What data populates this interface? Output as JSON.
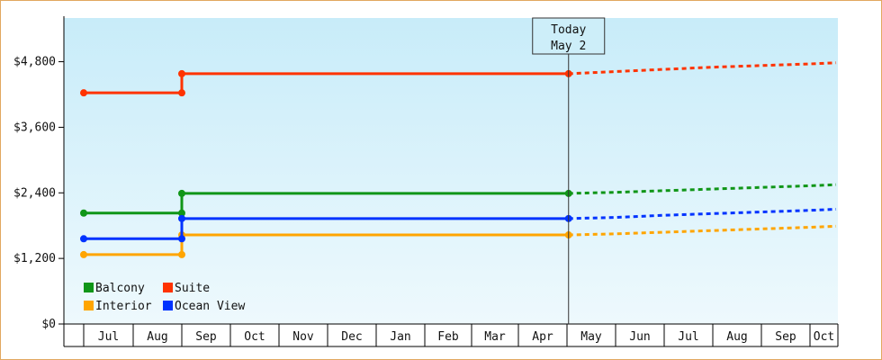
{
  "chart_data": {
    "type": "line",
    "y_ticks": [
      "$0",
      "$1,200",
      "$2,400",
      "$3,600",
      "$4,800"
    ],
    "y_tick_values": [
      0,
      1200,
      2400,
      3600,
      4800
    ],
    "ylim": [
      0,
      5600
    ],
    "x_months": [
      "Jul",
      "Aug",
      "Sep",
      "Oct",
      "Nov",
      "Dec",
      "Jan",
      "Feb",
      "Mar",
      "Apr",
      "May",
      "Jun",
      "Jul",
      "Aug",
      "Sep",
      "Oct"
    ],
    "today_label": "Today",
    "today_date": "May 2",
    "legend_placement": "bottom-left",
    "grid": false,
    "series": [
      {
        "name": "Balcony",
        "color": "#109618",
        "steps": [
          [
            "Jun 1",
            2030
          ],
          [
            "Aug 1",
            2030
          ],
          [
            "Aug 1",
            2390
          ],
          [
            "May 2",
            2390
          ]
        ],
        "forecast": [
          [
            "May 2",
            2390
          ],
          [
            "Jun 1",
            2410
          ],
          [
            "Jul 1",
            2440
          ],
          [
            "Aug 1",
            2470
          ],
          [
            "Sep 1",
            2500
          ],
          [
            "Oct 1",
            2530
          ],
          [
            "Oct 30",
            2550
          ]
        ]
      },
      {
        "name": "Suite",
        "color": "#ff3300",
        "steps": [
          [
            "Jun 1",
            4230
          ],
          [
            "Aug 1",
            4230
          ],
          [
            "Aug 1",
            4580
          ],
          [
            "May 2",
            4580
          ]
        ],
        "forecast": [
          [
            "May 2",
            4580
          ],
          [
            "Jun 1",
            4620
          ],
          [
            "Jul 1",
            4660
          ],
          [
            "Aug 1",
            4700
          ],
          [
            "Sep 1",
            4730
          ],
          [
            "Oct 1",
            4760
          ],
          [
            "Oct 30",
            4780
          ]
        ]
      },
      {
        "name": "Interior",
        "color": "#ffa500",
        "steps": [
          [
            "Jun 1",
            1270
          ],
          [
            "Aug 1",
            1270
          ],
          [
            "Aug 1",
            1630
          ],
          [
            "May 2",
            1630
          ]
        ],
        "forecast": [
          [
            "May 2",
            1630
          ],
          [
            "Jun 1",
            1650
          ],
          [
            "Jul 1",
            1680
          ],
          [
            "Aug 1",
            1710
          ],
          [
            "Sep 1",
            1740
          ],
          [
            "Oct 1",
            1770
          ],
          [
            "Oct 30",
            1790
          ]
        ]
      },
      {
        "name": "Ocean View",
        "color": "#0033ff",
        "steps": [
          [
            "Jun 1",
            1560
          ],
          [
            "Aug 1",
            1560
          ],
          [
            "Aug 1",
            1930
          ],
          [
            "May 2",
            1930
          ]
        ],
        "forecast": [
          [
            "May 2",
            1930
          ],
          [
            "Jun 1",
            1950
          ],
          [
            "Jul 1",
            1990
          ],
          [
            "Aug 1",
            2020
          ],
          [
            "Sep 1",
            2050
          ],
          [
            "Oct 1",
            2080
          ],
          [
            "Oct 30",
            2100
          ]
        ]
      }
    ]
  }
}
